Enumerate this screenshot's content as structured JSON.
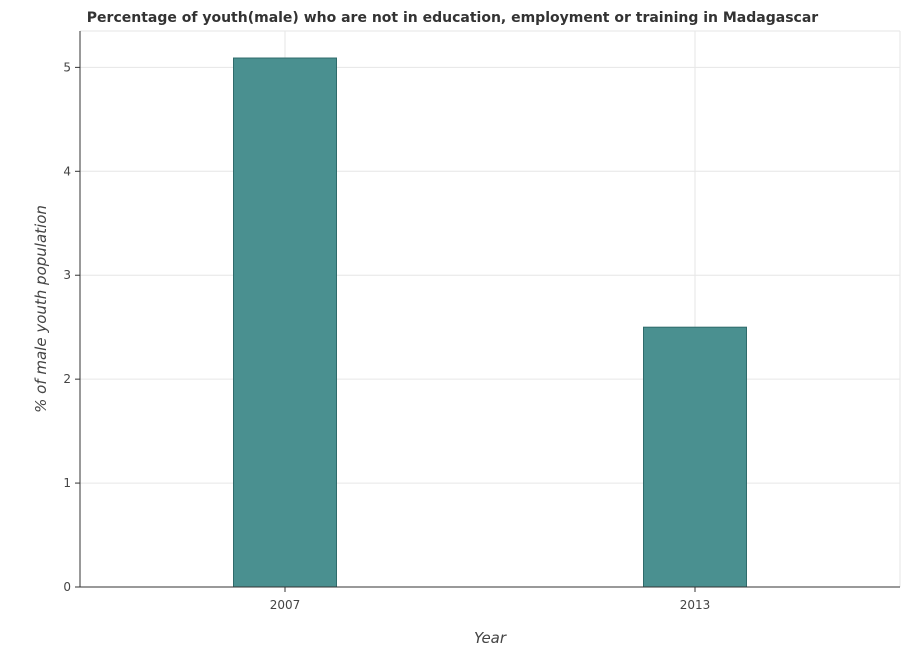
{
  "chart_data": {
    "type": "bar",
    "title": "Percentage of youth(male) who are not in education, employment or training in Madagascar",
    "xlabel": "Year",
    "ylabel": "% of male youth population",
    "categories": [
      "2007",
      "2013"
    ],
    "values": [
      5.09,
      2.5
    ],
    "ylim": [
      0,
      5.35
    ],
    "yticks": [
      0,
      1,
      2,
      3,
      4,
      5
    ],
    "grid": true,
    "bar_color": "#4a9090",
    "bar_edge_color": "#2f6b6b"
  }
}
